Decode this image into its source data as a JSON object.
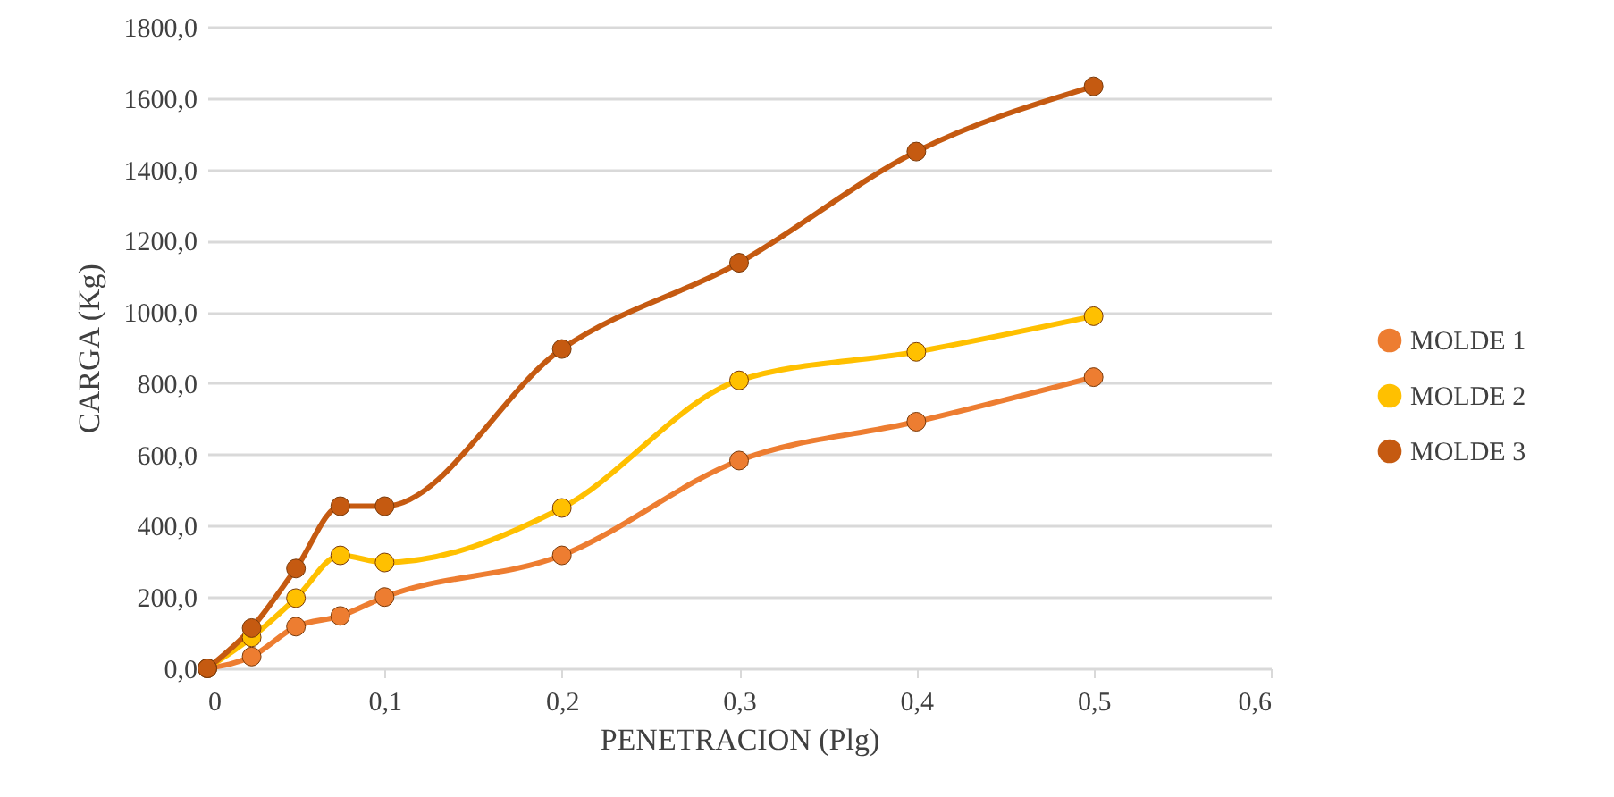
{
  "chart_data": {
    "type": "line",
    "xlabel": "PENETRACION (Plg)",
    "ylabel": "CARGA (Kg)",
    "x": [
      0,
      0.025,
      0.05,
      0.075,
      0.1,
      0.2,
      0.3,
      0.4,
      0.5
    ],
    "series": [
      {
        "name": "MOLDE 1",
        "color": "#ed7d31",
        "values": [
          0,
          33,
          117,
          147,
          200,
          317,
          583,
          692,
          817
        ]
      },
      {
        "name": "MOLDE 2",
        "color": "#ffc000",
        "values": [
          0,
          87,
          197,
          317,
          297,
          450,
          808,
          888,
          988
        ]
      },
      {
        "name": "MOLDE 3",
        "color": "#c55a11",
        "values": [
          0,
          113,
          280,
          455,
          455,
          896,
          1138,
          1450,
          1633
        ]
      }
    ],
    "xlim": [
      0,
      0.6
    ],
    "xticks": [
      0,
      {
        "value": 0.1,
        "label": "0,1"
      },
      {
        "value": 0.2,
        "label": "0,2"
      },
      {
        "value": 0.3,
        "label": "0,3"
      },
      {
        "value": 0.4,
        "label": "0,4"
      },
      {
        "value": 0.5,
        "label": "0,5"
      },
      {
        "value": 0.6,
        "label": "0,6"
      }
    ],
    "ylim": [
      0,
      1800
    ],
    "yticks": [
      {
        "value": 0,
        "label": "0,0"
      },
      {
        "value": 200,
        "label": "200,0"
      },
      {
        "value": 400,
        "label": "400,0"
      },
      {
        "value": 600,
        "label": "600,0"
      },
      {
        "value": 800,
        "label": "800,0"
      },
      {
        "value": 1000,
        "label": "1000,0"
      },
      {
        "value": 1200,
        "label": "1200,0"
      },
      {
        "value": 1400,
        "label": "1400,0"
      },
      {
        "value": 1600,
        "label": "1600,0"
      },
      {
        "value": 1800,
        "label": "1800,0"
      }
    ],
    "grid": "y",
    "legend": "right",
    "marker": "circle",
    "line_style": "solid"
  }
}
